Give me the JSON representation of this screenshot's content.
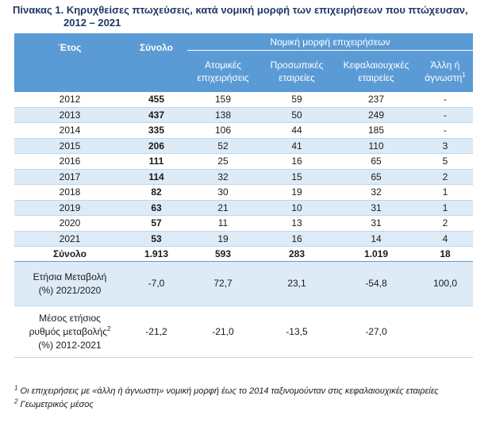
{
  "title": {
    "line1": "Πίνακας 1. Κηρυχθείσες πτωχεύσεις, κατά νομική μορφή των επιχειρήσεων που πτώχευσαν,",
    "line2": "2012 – 2021"
  },
  "header": {
    "year": "Έτος",
    "total": "Σύνολο",
    "group": "Νομική μορφή επιχειρήσεων",
    "col_individual": "Ατομικές επιχειρήσεις",
    "col_partnerships": "Προσωπικές εταιρείες",
    "col_capital": "Κεφαλαιουχικές εταιρείες",
    "col_other": "Άλλη ή άγνωστη",
    "col_other_sup": "1"
  },
  "rows": [
    {
      "year": "2012",
      "total": "455",
      "individual": "159",
      "partnerships": "59",
      "capital": "237",
      "other": "-"
    },
    {
      "year": "2013",
      "total": "437",
      "individual": "138",
      "partnerships": "50",
      "capital": "249",
      "other": "-"
    },
    {
      "year": "2014",
      "total": "335",
      "individual": "106",
      "partnerships": "44",
      "capital": "185",
      "other": "-"
    },
    {
      "year": "2015",
      "total": "206",
      "individual": "52",
      "partnerships": "41",
      "capital": "110",
      "other": "3"
    },
    {
      "year": "2016",
      "total": "111",
      "individual": "25",
      "partnerships": "16",
      "capital": "65",
      "other": "5"
    },
    {
      "year": "2017",
      "total": "114",
      "individual": "32",
      "partnerships": "15",
      "capital": "65",
      "other": "2"
    },
    {
      "year": "2018",
      "total": "82",
      "individual": "30",
      "partnerships": "19",
      "capital": "32",
      "other": "1"
    },
    {
      "year": "2019",
      "total": "63",
      "individual": "21",
      "partnerships": "10",
      "capital": "31",
      "other": "1"
    },
    {
      "year": "2020",
      "total": "57",
      "individual": "11",
      "partnerships": "13",
      "capital": "31",
      "other": "2"
    },
    {
      "year": "2021",
      "total": "53",
      "individual": "19",
      "partnerships": "16",
      "capital": "14",
      "other": "4"
    }
  ],
  "totals": {
    "label": "Σύνολο",
    "total": "1.913",
    "individual": "593",
    "partnerships": "283",
    "capital": "1.019",
    "other": "18"
  },
  "annual_change": {
    "label_line1": "Ετήσια Μεταβολή",
    "label_line2": "(%) 2021/2020",
    "total": "-7,0",
    "individual": "72,7",
    "partnerships": "23,1",
    "capital": "-54,8",
    "other": "100,0"
  },
  "avg_rate": {
    "label_line1": "Μέσος ετήσιος",
    "label_line2": "ρυθμός μεταβολής",
    "label_sup": "2",
    "label_line3": "(%) 2012-2021",
    "total": "-21,2",
    "individual": "-21,0",
    "partnerships": "-13,5",
    "capital": "-27,0",
    "other": ""
  },
  "footnotes": {
    "note1_mark": "1",
    "note1": " Οι επιχειρήσεις με «άλλη ή άγνωστη» νομική μορφή έως το 2014 ταξινομούνταν στις κεφαλαιουχικές εταιρείες",
    "note2_mark": "2",
    "note2": " Γεωμετρικός μέσος"
  },
  "colors": {
    "header_bg": "#5b9bd5",
    "band_bg": "#ddebf7",
    "title_color": "#1f3864"
  }
}
